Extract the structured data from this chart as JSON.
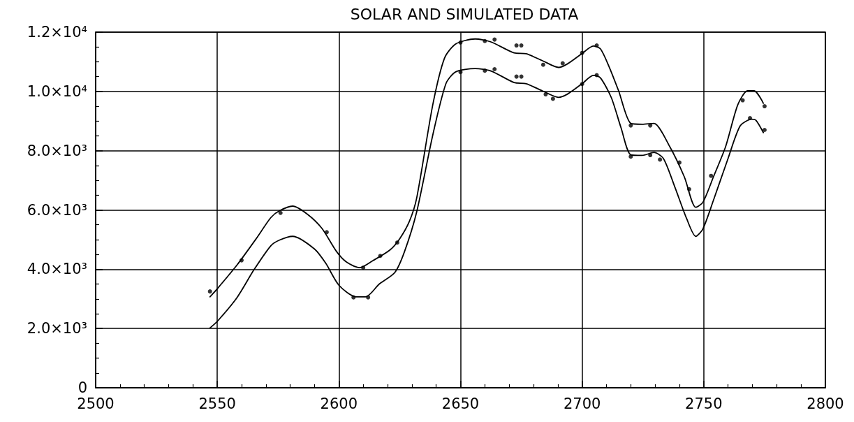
{
  "chart_data": {
    "type": "line",
    "title": "SOLAR AND SIMULATED DATA",
    "xlim": [
      2500,
      2800
    ],
    "xticks": [
      2500,
      2550,
      2600,
      2650,
      2700,
      2750,
      2800
    ],
    "ylim": [
      0,
      12000
    ],
    "yticks": [
      0,
      {
        "value": 2000,
        "label": "2.0×10³"
      },
      {
        "value": 4000,
        "label": "4.0×10³"
      },
      {
        "value": 6000,
        "label": "6.0×10³"
      },
      {
        "value": 8000,
        "label": "8.0×10³"
      },
      {
        "value": 10000,
        "label": "1.0×10⁴"
      },
      {
        "value": 12000,
        "label": "1.2×10⁴"
      }
    ],
    "grid": true,
    "line_style": "solid",
    "series": [
      {
        "type": "line",
        "color": "#000000",
        "x": [
          2547,
          2550,
          2558,
          2566,
          2572,
          2575.5,
          2581,
          2587,
          2593,
          2599,
          2603,
          2608.5,
          2614,
          2621,
          2625,
          2629,
          2632,
          2638.6,
          2643.4,
          2648,
          2656,
          2662.5,
          2672,
          2677,
          2683.6,
          2690.3,
          2694,
          2700,
          2704.6,
          2707.5,
          2711,
          2715,
          2720,
          2724.7,
          2729.5,
          2736,
          2742,
          2746.7,
          2749.6,
          2754,
          2759,
          2764,
          2768,
          2770.7,
          2774.5
        ],
        "values": [
          3070,
          3340,
          4130,
          5030,
          5740,
          5970,
          6130,
          5860,
          5380,
          4600,
          4250,
          4050,
          4290,
          4650,
          5030,
          5620,
          6410,
          9550,
          11120,
          11600,
          11770,
          11670,
          11300,
          11270,
          11040,
          10810,
          10930,
          11280,
          11530,
          11440,
          10850,
          10020,
          8920,
          8890,
          8920,
          8140,
          7120,
          6090,
          6250,
          7120,
          8140,
          9550,
          10020,
          10020,
          9600
        ]
      },
      {
        "type": "line",
        "color": "#000000",
        "x": [
          2547,
          2550,
          2558,
          2565,
          2572,
          2575.5,
          2581,
          2590,
          2594.6,
          2600,
          2607,
          2611,
          2616.6,
          2623,
          2627,
          2632,
          2638.6,
          2644,
          2648,
          2656,
          2662.5,
          2672,
          2677,
          2683.6,
          2690.3,
          2694,
          2700,
          2704.6,
          2707.5,
          2712,
          2716,
          2720,
          2724.7,
          2729.5,
          2733.4,
          2738,
          2743,
          2746.7,
          2749.6,
          2754,
          2760,
          2765,
          2769.7,
          2771.5,
          2774.5
        ],
        "values": [
          2020,
          2240,
          3030,
          3970,
          4790,
          4980,
          5110,
          4680,
          4200,
          3460,
          3070,
          3070,
          3500,
          3890,
          4600,
          5940,
          8530,
          10260,
          10660,
          10770,
          10690,
          10300,
          10260,
          10020,
          9800,
          9910,
          10260,
          10540,
          10460,
          9790,
          8770,
          7860,
          7840,
          7940,
          7740,
          6800,
          5700,
          5110,
          5350,
          6330,
          7740,
          8840,
          9060,
          9020,
          8610
        ]
      },
      {
        "type": "scatter",
        "color": "#000000",
        "marker": "circle",
        "x": [
          2547,
          2560,
          2576,
          2595,
          2610,
          2617,
          2624,
          2650,
          2660,
          2664,
          2673,
          2675,
          2684,
          2692,
          2700,
          2706,
          2720,
          2728,
          2740,
          2744,
          2753,
          2766,
          2775
        ],
        "values": [
          3250,
          4300,
          5900,
          5250,
          4050,
          4450,
          4900,
          11650,
          11700,
          11750,
          11550,
          11550,
          10900,
          10950,
          11300,
          11550,
          8850,
          8850,
          7600,
          6700,
          7150,
          9700,
          9500
        ]
      },
      {
        "type": "scatter",
        "color": "#000000",
        "marker": "circle",
        "x": [
          2606,
          2612,
          2650,
          2660,
          2664,
          2673,
          2675,
          2685,
          2688,
          2700,
          2706,
          2720,
          2728,
          2732,
          2769,
          2775
        ],
        "values": [
          3050,
          3050,
          10650,
          10700,
          10750,
          10500,
          10500,
          9900,
          9750,
          10250,
          10550,
          7800,
          7850,
          7700,
          9100,
          8700
        ]
      }
    ]
  }
}
